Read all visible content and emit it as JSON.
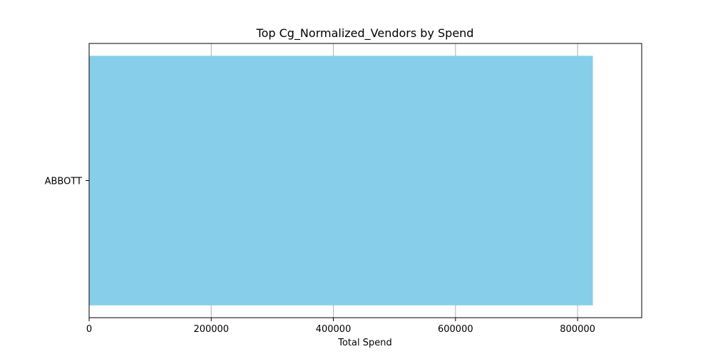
{
  "chart_data": {
    "type": "bar",
    "orientation": "horizontal",
    "title": "Top Cg_Normalized_Vendors by Spend",
    "xlabel": "Total Spend",
    "ylabel": "",
    "categories": [
      "ABBOTT"
    ],
    "values": [
      825000
    ],
    "xlim": [
      0,
      905000
    ],
    "xticks": [
      0,
      200000,
      400000,
      600000,
      800000
    ],
    "xtick_labels": [
      "0",
      "200000",
      "400000",
      "600000",
      "800000"
    ],
    "grid": "x-axis vertical lines",
    "legend": "none",
    "colors": {
      "bar": "#87CEEB",
      "grid": "#b0b0b0",
      "axis": "#000000"
    }
  }
}
